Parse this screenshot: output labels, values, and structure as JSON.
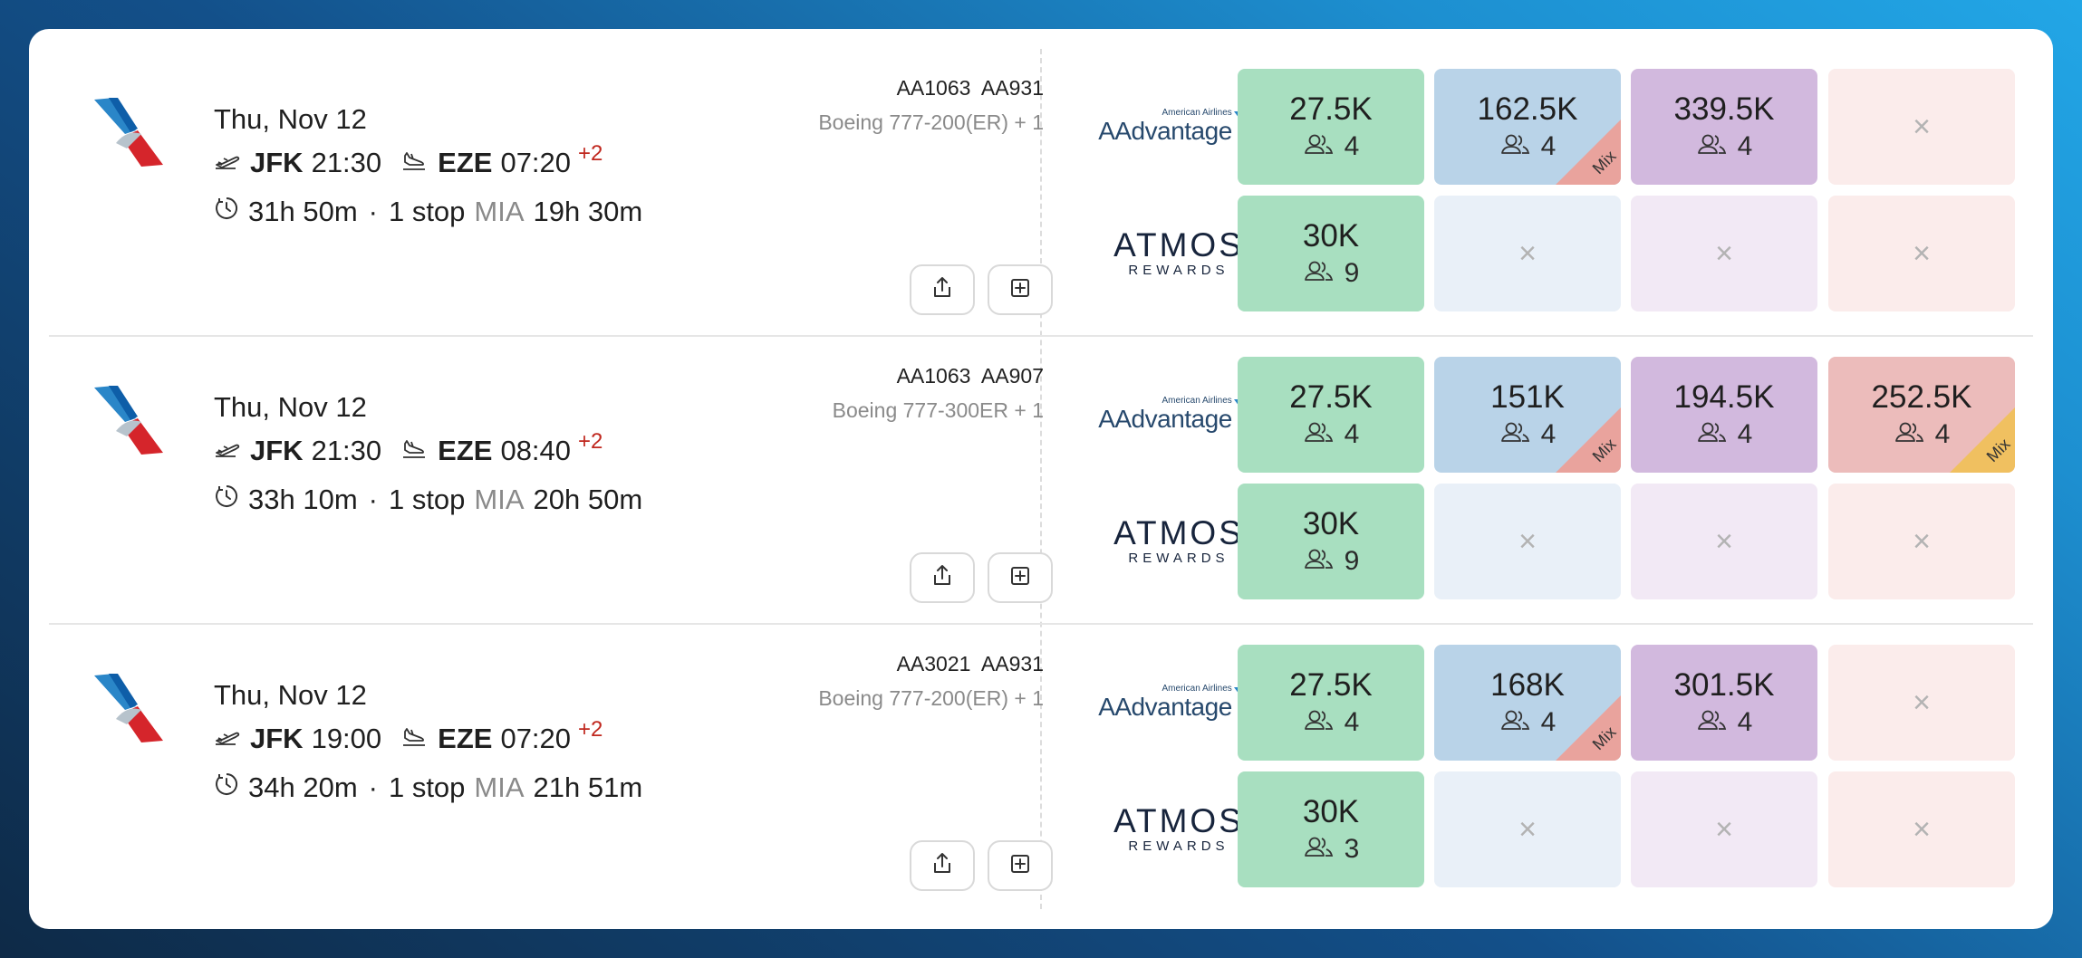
{
  "results": [
    {
      "date": "Thu, Nov 12",
      "dep_code": "JFK",
      "dep_time": "21:30",
      "arr_code": "EZE",
      "arr_time": "07:20",
      "day_offset": "+2",
      "duration": "31h 50m",
      "stops": "1 stop",
      "via": "MIA",
      "layover": "19h 30m",
      "flights": "AA1063  AA931",
      "aircraft": "Boeing 777-200(ER) + 1",
      "aadvantage": [
        {
          "miles": "27.5K",
          "seats": "4",
          "color": "#a8dfc0"
        },
        {
          "miles": "162.5K",
          "seats": "4",
          "color": "#b9d3e8",
          "mix": "Mix",
          "mix_color": "#e9a39d"
        },
        {
          "miles": "339.5K",
          "seats": "4",
          "color": "#d2b9de"
        },
        {
          "miles": "",
          "seats": "",
          "color": "#fbeceb",
          "none": "×"
        }
      ],
      "atmos": [
        {
          "miles": "30K",
          "seats": "9",
          "color": "#a8dfc0"
        },
        {
          "miles": "",
          "seats": "",
          "color": "#e9f0f8",
          "none": "×"
        },
        {
          "miles": "",
          "seats": "",
          "color": "#f2e9f5",
          "none": "×"
        },
        {
          "miles": "",
          "seats": "",
          "color": "#fbeceb",
          "none": "×"
        }
      ]
    },
    {
      "date": "Thu, Nov 12",
      "dep_code": "JFK",
      "dep_time": "21:30",
      "arr_code": "EZE",
      "arr_time": "08:40",
      "day_offset": "+2",
      "duration": "33h 10m",
      "stops": "1 stop",
      "via": "MIA",
      "layover": "20h 50m",
      "flights": "AA1063  AA907",
      "aircraft": "Boeing 777-300ER + 1",
      "aadvantage": [
        {
          "miles": "27.5K",
          "seats": "4",
          "color": "#a8dfc0"
        },
        {
          "miles": "151K",
          "seats": "4",
          "color": "#b9d3e8",
          "mix": "Mix",
          "mix_color": "#e9a39d"
        },
        {
          "miles": "194.5K",
          "seats": "4",
          "color": "#d2b9de"
        },
        {
          "miles": "252.5K",
          "seats": "4",
          "color": "#ecbcbb",
          "mix": "Mix",
          "mix_color": "#f0c060"
        }
      ],
      "atmos": [
        {
          "miles": "30K",
          "seats": "9",
          "color": "#a8dfc0"
        },
        {
          "miles": "",
          "seats": "",
          "color": "#e9f0f8",
          "none": "×"
        },
        {
          "miles": "",
          "seats": "",
          "color": "#f2e9f5",
          "none": "×"
        },
        {
          "miles": "",
          "seats": "",
          "color": "#fbeceb",
          "none": "×"
        }
      ]
    },
    {
      "date": "Thu, Nov 12",
      "dep_code": "JFK",
      "dep_time": "19:00",
      "arr_code": "EZE",
      "arr_time": "07:20",
      "day_offset": "+2",
      "duration": "34h 20m",
      "stops": "1 stop",
      "via": "MIA",
      "layover": "21h 51m",
      "flights": "AA3021  AA931",
      "aircraft": "Boeing 777-200(ER) + 1",
      "aadvantage": [
        {
          "miles": "27.5K",
          "seats": "4",
          "color": "#a8dfc0"
        },
        {
          "miles": "168K",
          "seats": "4",
          "color": "#b9d3e8",
          "mix": "Mix",
          "mix_color": "#e9a39d"
        },
        {
          "miles": "301.5K",
          "seats": "4",
          "color": "#d2b9de"
        },
        {
          "miles": "",
          "seats": "",
          "color": "#fbeceb",
          "none": "×"
        }
      ],
      "atmos": [
        {
          "miles": "30K",
          "seats": "3",
          "color": "#a8dfc0"
        },
        {
          "miles": "",
          "seats": "",
          "color": "#e9f0f8",
          "none": "×"
        },
        {
          "miles": "",
          "seats": "",
          "color": "#f2e9f5",
          "none": "×"
        },
        {
          "miles": "",
          "seats": "",
          "color": "#fbeceb",
          "none": "×"
        }
      ]
    }
  ],
  "programs": {
    "aadvantage_small": "American Airlines",
    "aadvantage_name": "AAdvantage",
    "atmos_name": "ATMOS",
    "atmos_sub": "REWARDS"
  },
  "icons": {
    "departure": "plane-takeoff-icon",
    "arrival": "plane-landing-icon",
    "duration": "clock-icon",
    "seats": "people-icon",
    "share": "share-icon",
    "add": "add-square-icon"
  }
}
